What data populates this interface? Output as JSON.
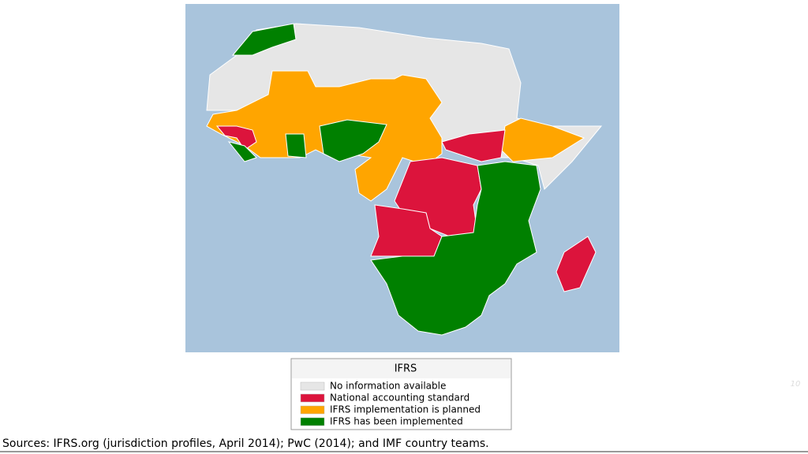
{
  "legend": {
    "title": "IFRS",
    "items": [
      {
        "label": "No information available",
        "color": "#e6e6e6"
      },
      {
        "label": "National accounting standard",
        "color": "#dc143c"
      },
      {
        "label": "IFRS implementation is planned",
        "color": "#ffa500"
      },
      {
        "label": "IFRS has been implemented",
        "color": "#008000"
      }
    ]
  },
  "source": "Sources: IFRS.org (jurisdiction profiles, April 2014); PwC (2014); and IMF country teams.",
  "page_number": "10"
}
